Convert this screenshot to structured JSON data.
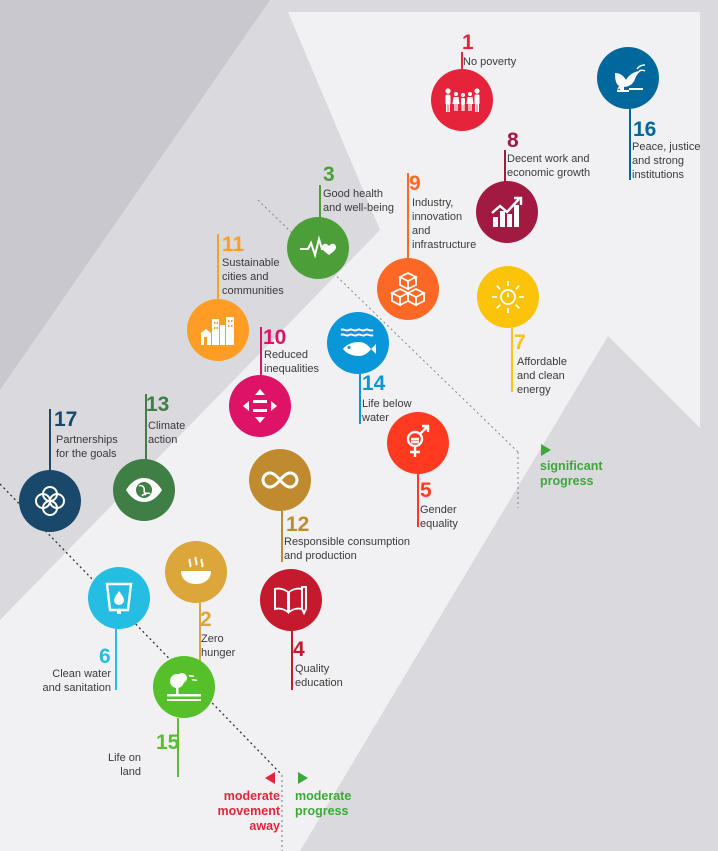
{
  "legend": {
    "significant": {
      "lines": [
        "significant",
        "progress"
      ],
      "color": "#3aaa35"
    },
    "moderate": {
      "lines": [
        "moderate",
        "progress"
      ],
      "color": "#3aaa35"
    },
    "away": {
      "lines": [
        "moderate",
        "movement",
        "away"
      ],
      "color": "#e5243b"
    }
  },
  "goals": [
    {
      "id": "1",
      "num": "1",
      "lines": [
        "No poverty"
      ],
      "color": "#e5243b",
      "icon": "family-icon"
    },
    {
      "id": "2",
      "num": "2",
      "lines": [
        "Zero",
        "hunger"
      ],
      "color": "#dda63a",
      "icon": "bowl-icon"
    },
    {
      "id": "3",
      "num": "3",
      "lines": [
        "Good health",
        "and well-being"
      ],
      "color": "#4c9f38",
      "icon": "heartbeat-icon"
    },
    {
      "id": "4",
      "num": "4",
      "lines": [
        "Quality",
        "education"
      ],
      "color": "#c5192d",
      "icon": "book-icon"
    },
    {
      "id": "5",
      "num": "5",
      "lines": [
        "Gender",
        "equality"
      ],
      "color": "#ff3a21",
      "icon": "gender-icon"
    },
    {
      "id": "6",
      "num": "6",
      "lines": [
        "Clean water",
        "and sanitation"
      ],
      "color": "#26bde2",
      "icon": "water-glass-icon"
    },
    {
      "id": "7",
      "num": "7",
      "lines": [
        "Affordable",
        "and clean",
        "energy"
      ],
      "color": "#fcc30b",
      "icon": "sun-power-icon"
    },
    {
      "id": "8",
      "num": "8",
      "lines": [
        "Decent work and",
        "economic growth"
      ],
      "color": "#a21942",
      "icon": "growth-chart-icon"
    },
    {
      "id": "9",
      "num": "9",
      "lines": [
        "Industry,",
        "innovation",
        "and",
        "infrastructure"
      ],
      "color": "#fd6925",
      "icon": "cubes-icon"
    },
    {
      "id": "10",
      "num": "10",
      "lines": [
        "Reduced",
        "inequalities"
      ],
      "color": "#dd1367",
      "icon": "equality-icon"
    },
    {
      "id": "11",
      "num": "11",
      "lines": [
        "Sustainable",
        "cities and",
        "communities"
      ],
      "color": "#fd9d24",
      "icon": "city-icon"
    },
    {
      "id": "12",
      "num": "12",
      "lines": [
        "Responsible consumption",
        "and production"
      ],
      "color": "#bf8b2e",
      "icon": "infinity-icon"
    },
    {
      "id": "13",
      "num": "13",
      "lines": [
        "Climate",
        "action"
      ],
      "color": "#3f7e44",
      "icon": "eye-globe-icon"
    },
    {
      "id": "14",
      "num": "14",
      "lines": [
        "Life below",
        "water"
      ],
      "color": "#0a97d9",
      "icon": "fish-icon"
    },
    {
      "id": "15",
      "num": "15",
      "lines": [
        "Life on",
        "land"
      ],
      "color": "#56c02b",
      "icon": "tree-icon"
    },
    {
      "id": "16",
      "num": "16",
      "lines": [
        "Peace, justice",
        "and strong",
        "institutions"
      ],
      "color": "#00689d",
      "icon": "dove-icon"
    },
    {
      "id": "17",
      "num": "17",
      "lines": [
        "Partnerships",
        "for the goals"
      ],
      "color": "#19486a",
      "icon": "rings-icon"
    }
  ]
}
